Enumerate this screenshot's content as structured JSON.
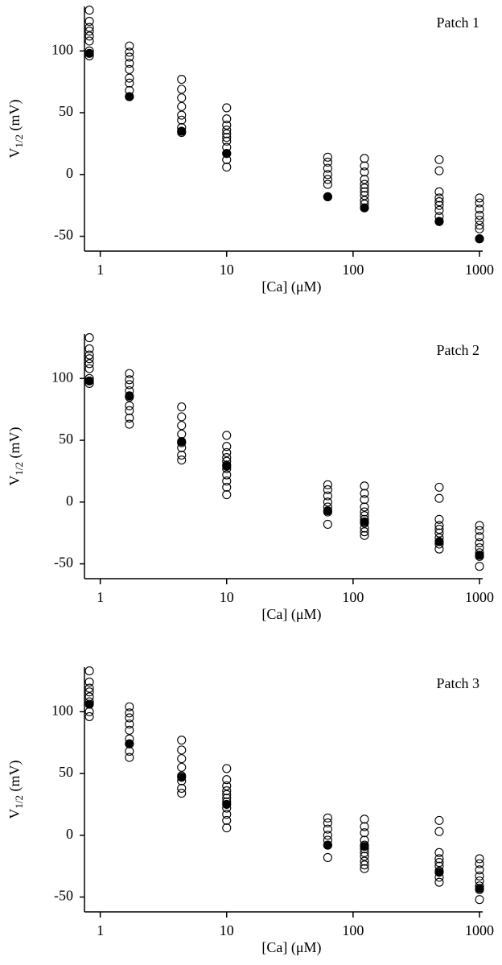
{
  "chart_data": [
    {
      "type": "scatter",
      "annotation": "Patch 1",
      "xlabel": "[Ca] (μM)",
      "ylabel": [
        "V",
        "1/2",
        " (mV)"
      ],
      "xlog": true,
      "xlim": [
        0.75,
        1060
      ],
      "xticks": [
        1,
        10,
        100,
        1000
      ],
      "ylim": [
        -62,
        136
      ],
      "yticks": [
        -50,
        0,
        50,
        100
      ],
      "series": [
        {
          "marker": "open",
          "color": "#000000",
          "x": [
            0.82,
            0.82,
            0.82,
            0.82,
            0.82,
            0.82,
            0.82,
            0.82,
            1.7,
            1.7,
            1.7,
            1.7,
            1.7,
            1.7,
            1.7,
            1.7,
            1.7,
            4.4,
            4.4,
            4.4,
            4.4,
            4.4,
            4.4,
            4.4,
            4.4,
            10,
            10,
            10,
            10,
            10,
            10,
            10,
            10,
            10,
            10,
            10,
            63,
            63,
            63,
            63,
            63,
            63,
            63,
            123,
            123,
            123,
            123,
            123,
            123,
            123,
            123,
            123,
            123,
            123,
            480,
            480,
            480,
            480,
            480,
            480,
            480,
            480,
            480,
            1000,
            1000,
            1000,
            1000,
            1000,
            1000,
            1000,
            1000
          ],
          "values": [
            133,
            124,
            119,
            116,
            112,
            108,
            100,
            96,
            104,
            99,
            95,
            90,
            85,
            78,
            74,
            68,
            63,
            77,
            69,
            62,
            55,
            48,
            44,
            38,
            34,
            54,
            45,
            40,
            36,
            33,
            30,
            27,
            22,
            17,
            12,
            6,
            14,
            10,
            5,
            0,
            -4,
            -8,
            -18,
            13,
            7,
            2,
            -4,
            -8,
            -11,
            -14,
            -17,
            -21,
            -24,
            -27,
            12,
            3,
            -14,
            -19,
            -22,
            -25,
            -29,
            -34,
            -38,
            -19,
            -23,
            -28,
            -33,
            -37,
            -41,
            -44,
            -52
          ]
        },
        {
          "marker": "filled",
          "color": "#000000",
          "x": [
            0.82,
            1.7,
            4.4,
            10,
            63,
            123,
            480,
            1000
          ],
          "values": [
            98,
            63,
            35,
            17,
            -18,
            -27,
            -38,
            -52
          ]
        }
      ]
    },
    {
      "type": "scatter",
      "annotation": "Patch 2",
      "xlabel": "[Ca] (μM)",
      "ylabel": [
        "V",
        "1/2",
        " (mV)"
      ],
      "xlog": true,
      "xlim": [
        0.75,
        1060
      ],
      "xticks": [
        1,
        10,
        100,
        1000
      ],
      "ylim": [
        -62,
        136
      ],
      "yticks": [
        -50,
        0,
        50,
        100
      ],
      "series": [
        {
          "marker": "open",
          "color": "#000000",
          "x": [
            0.82,
            0.82,
            0.82,
            0.82,
            0.82,
            0.82,
            0.82,
            0.82,
            1.7,
            1.7,
            1.7,
            1.7,
            1.7,
            1.7,
            1.7,
            1.7,
            1.7,
            4.4,
            4.4,
            4.4,
            4.4,
            4.4,
            4.4,
            4.4,
            4.4,
            10,
            10,
            10,
            10,
            10,
            10,
            10,
            10,
            10,
            10,
            10,
            63,
            63,
            63,
            63,
            63,
            63,
            63,
            123,
            123,
            123,
            123,
            123,
            123,
            123,
            123,
            123,
            123,
            123,
            480,
            480,
            480,
            480,
            480,
            480,
            480,
            480,
            480,
            1000,
            1000,
            1000,
            1000,
            1000,
            1000,
            1000,
            1000
          ],
          "values": [
            133,
            124,
            119,
            116,
            112,
            108,
            100,
            96,
            104,
            99,
            95,
            90,
            85,
            78,
            74,
            68,
            63,
            77,
            69,
            62,
            55,
            48,
            44,
            38,
            34,
            54,
            45,
            40,
            36,
            33,
            30,
            27,
            22,
            17,
            12,
            6,
            14,
            10,
            5,
            0,
            -4,
            -8,
            -18,
            13,
            7,
            2,
            -4,
            -8,
            -11,
            -14,
            -17,
            -21,
            -24,
            -27,
            12,
            3,
            -14,
            -19,
            -22,
            -25,
            -29,
            -34,
            -38,
            -19,
            -23,
            -28,
            -33,
            -37,
            -41,
            -44,
            -52
          ]
        },
        {
          "marker": "filled",
          "color": "#000000",
          "x": [
            0.82,
            1.7,
            4.4,
            10,
            63,
            123,
            480,
            1000
          ],
          "values": [
            98,
            86,
            49,
            29,
            -7,
            -16,
            -32,
            -43
          ]
        }
      ]
    },
    {
      "type": "scatter",
      "annotation": "Patch 3",
      "xlabel": "[Ca] (μM)",
      "ylabel": [
        "V",
        "1/2",
        " (mV)"
      ],
      "xlog": true,
      "xlim": [
        0.75,
        1060
      ],
      "xticks": [
        1,
        10,
        100,
        1000
      ],
      "ylim": [
        -62,
        136
      ],
      "yticks": [
        -50,
        0,
        50,
        100
      ],
      "series": [
        {
          "marker": "open",
          "color": "#000000",
          "x": [
            0.82,
            0.82,
            0.82,
            0.82,
            0.82,
            0.82,
            0.82,
            0.82,
            1.7,
            1.7,
            1.7,
            1.7,
            1.7,
            1.7,
            1.7,
            1.7,
            1.7,
            4.4,
            4.4,
            4.4,
            4.4,
            4.4,
            4.4,
            4.4,
            4.4,
            10,
            10,
            10,
            10,
            10,
            10,
            10,
            10,
            10,
            10,
            10,
            63,
            63,
            63,
            63,
            63,
            63,
            63,
            123,
            123,
            123,
            123,
            123,
            123,
            123,
            123,
            123,
            123,
            123,
            480,
            480,
            480,
            480,
            480,
            480,
            480,
            480,
            480,
            1000,
            1000,
            1000,
            1000,
            1000,
            1000,
            1000,
            1000
          ],
          "values": [
            133,
            124,
            119,
            116,
            112,
            108,
            100,
            96,
            104,
            99,
            95,
            90,
            85,
            78,
            74,
            68,
            63,
            77,
            69,
            62,
            55,
            48,
            44,
            38,
            34,
            54,
            45,
            40,
            36,
            33,
            30,
            27,
            22,
            17,
            12,
            6,
            14,
            10,
            5,
            0,
            -4,
            -8,
            -18,
            13,
            7,
            2,
            -4,
            -8,
            -11,
            -14,
            -17,
            -21,
            -24,
            -27,
            12,
            3,
            -14,
            -19,
            -22,
            -25,
            -29,
            -34,
            -38,
            -19,
            -23,
            -28,
            -33,
            -37,
            -41,
            -44,
            -52
          ]
        },
        {
          "marker": "filled",
          "color": "#000000",
          "x": [
            0.82,
            1.7,
            4.4,
            10,
            63,
            123,
            480,
            1000
          ],
          "values": [
            106,
            74,
            47,
            25,
            -8,
            -9,
            -30,
            -43
          ]
        }
      ]
    }
  ]
}
